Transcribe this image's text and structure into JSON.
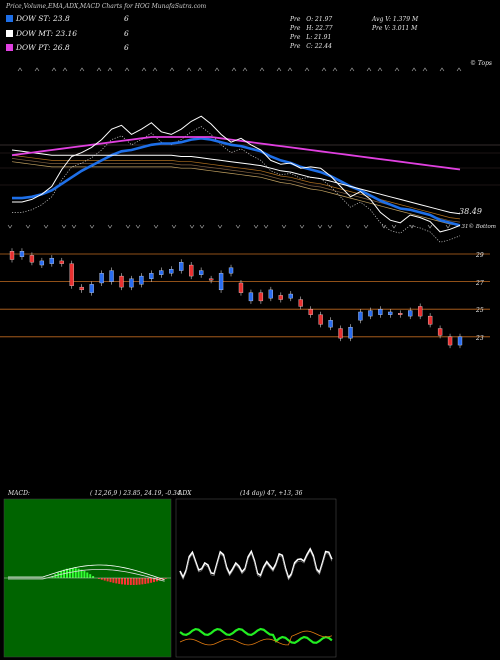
{
  "header": {
    "title": "Price,Volume,EMA,ADX,MACD Charts for HOG MunafaSutra.com",
    "legend": [
      {
        "label": "DOW ST: 23.8",
        "value": "6",
        "color": "#1e6fe8"
      },
      {
        "label": "DOW MT: 23.16",
        "value": "6",
        "color": "#ffffff"
      },
      {
        "label": "DOW PT: 26.8",
        "value": "6",
        "color": "#e040e0"
      }
    ],
    "stats": [
      {
        "label": "Pre",
        "text": "O: 21.97"
      },
      {
        "label": "Pre",
        "text": "H: 22.77"
      },
      {
        "label": "Pre",
        "text": "L: 21.91"
      },
      {
        "label": "Pre",
        "text": "C: 22.44"
      }
    ],
    "avg_volume": "Avg V: 1.379 M",
    "pre_volume": "Pre V: 3.011 M"
  },
  "ema_panel": {
    "top_right_label": "© Tops",
    "last_price_label": "38.49",
    "bottom_right_label": "31© Bottom"
  },
  "candle_panel": {
    "price_levels": [
      29,
      27,
      25,
      23
    ],
    "level_labels": [
      "29",
      "27",
      "25",
      "23"
    ]
  },
  "macd": {
    "label": "MACD:",
    "params": "( 12,26,9 ) 23.85, 24.19, -0.34"
  },
  "adx": {
    "label": "ADX",
    "params": "(14 day) 47, +13, 36"
  },
  "chart_data": {
    "type": "candlestick",
    "y_levels": [
      29,
      27,
      25,
      23
    ],
    "candles": [
      {
        "o": 29.2,
        "c": 28.6
      },
      {
        "o": 28.8,
        "c": 29.2
      },
      {
        "o": 28.9,
        "c": 28.4
      },
      {
        "o": 28.2,
        "c": 28.5
      },
      {
        "o": 28.3,
        "c": 28.7
      },
      {
        "o": 28.5,
        "c": 28.3
      },
      {
        "o": 28.3,
        "c": 26.7
      },
      {
        "o": 26.6,
        "c": 26.4
      },
      {
        "o": 26.2,
        "c": 26.8
      },
      {
        "o": 26.9,
        "c": 27.6
      },
      {
        "o": 27.0,
        "c": 27.8
      },
      {
        "o": 27.4,
        "c": 26.6
      },
      {
        "o": 26.6,
        "c": 27.2
      },
      {
        "o": 26.8,
        "c": 27.4
      },
      {
        "o": 27.2,
        "c": 27.6
      },
      {
        "o": 27.5,
        "c": 27.8
      },
      {
        "o": 27.6,
        "c": 27.9
      },
      {
        "o": 27.8,
        "c": 28.4
      },
      {
        "o": 28.2,
        "c": 27.4
      },
      {
        "o": 27.5,
        "c": 27.8
      },
      {
        "o": 27.2,
        "c": 27.1
      },
      {
        "o": 26.4,
        "c": 27.6
      },
      {
        "o": 27.6,
        "c": 28.0
      },
      {
        "o": 26.9,
        "c": 26.2
      },
      {
        "o": 25.6,
        "c": 26.2
      },
      {
        "o": 26.2,
        "c": 25.6
      },
      {
        "o": 25.8,
        "c": 26.4
      },
      {
        "o": 26.0,
        "c": 25.7
      },
      {
        "o": 25.8,
        "c": 26.1
      },
      {
        "o": 25.7,
        "c": 25.2
      },
      {
        "o": 25.0,
        "c": 24.6
      },
      {
        "o": 24.6,
        "c": 23.9
      },
      {
        "o": 23.7,
        "c": 24.2
      },
      {
        "o": 23.6,
        "c": 22.9
      },
      {
        "o": 22.9,
        "c": 23.7
      },
      {
        "o": 24.2,
        "c": 24.8
      },
      {
        "o": 24.5,
        "c": 24.9
      },
      {
        "o": 24.6,
        "c": 25.0
      },
      {
        "o": 24.6,
        "c": 24.8
      },
      {
        "o": 24.7,
        "c": 24.6
      },
      {
        "o": 24.5,
        "c": 24.9
      },
      {
        "o": 25.2,
        "c": 24.5
      },
      {
        "o": 24.5,
        "c": 23.9
      },
      {
        "o": 23.6,
        "c": 23.1
      },
      {
        "o": 23.0,
        "c": 22.4
      },
      {
        "o": 22.4,
        "c": 23.0
      }
    ],
    "price_line": [
      24,
      24,
      24.2,
      24.6,
      25.2,
      26.5,
      27.5,
      27.8,
      28.2,
      28.8,
      29.6,
      29.9,
      29.2,
      29.6,
      30.1,
      29.4,
      29.2,
      29.6,
      30.2,
      30.6,
      30.0,
      29.2,
      28.6,
      28.9,
      28.4,
      28.0,
      27.2,
      26.9,
      27.0,
      26.6,
      26.7,
      26.6,
      26.0,
      25.2,
      24.4,
      24.8,
      24.2,
      23.2,
      22.6,
      22.4,
      23.0,
      22.8,
      22.5,
      21.7,
      21.9,
      22.2
    ],
    "ema_series": [
      {
        "values": [
          24.3,
          24.3,
          24.4,
          24.6,
          24.9,
          25.4,
          25.9,
          26.4,
          26.8,
          27.2,
          27.6,
          27.9,
          28.0,
          28.2,
          28.4,
          28.5,
          28.5,
          28.6,
          28.8,
          28.9,
          28.8,
          28.6,
          28.4,
          28.3,
          28.1,
          27.9,
          27.5,
          27.2,
          27.0,
          26.7,
          26.5,
          26.3,
          26.0,
          25.6,
          25.2,
          24.9,
          24.5,
          24.1,
          23.8,
          23.5,
          23.4,
          23.2,
          23.0,
          22.6,
          22.4,
          22.2
        ],
        "color": "#1e6fe8"
      },
      {
        "values": [
          28.0,
          27.9,
          27.8,
          27.7,
          27.6,
          27.6,
          27.6,
          27.6,
          27.6,
          27.6,
          27.6,
          27.6,
          27.6,
          27.6,
          27.6,
          27.6,
          27.6,
          27.5,
          27.5,
          27.4,
          27.3,
          27.2,
          27.1,
          27.0,
          26.9,
          26.8,
          26.6,
          26.4,
          26.3,
          26.1,
          25.9,
          25.8,
          25.6,
          25.4,
          25.2,
          25.0,
          24.8,
          24.6,
          24.4,
          24.2,
          24.0,
          23.8,
          23.6,
          23.4,
          23.2,
          23.1
        ],
        "color": "#ffffff"
      },
      {
        "values": [
          27.6,
          27.7,
          27.8,
          27.9,
          28.0,
          28.1,
          28.2,
          28.3,
          28.4,
          28.5,
          28.6,
          28.7,
          28.8,
          28.9,
          29.0,
          29.0,
          29.0,
          29.0,
          29.0,
          29.0,
          29.0,
          28.9,
          28.8,
          28.7,
          28.6,
          28.5,
          28.4,
          28.3,
          28.2,
          28.1,
          28.0,
          27.9,
          27.8,
          27.7,
          27.6,
          27.5,
          27.4,
          27.3,
          27.2,
          27.1,
          27.0,
          26.9,
          26.8,
          26.7,
          26.6,
          26.5
        ],
        "color": "#e040e0"
      }
    ]
  }
}
